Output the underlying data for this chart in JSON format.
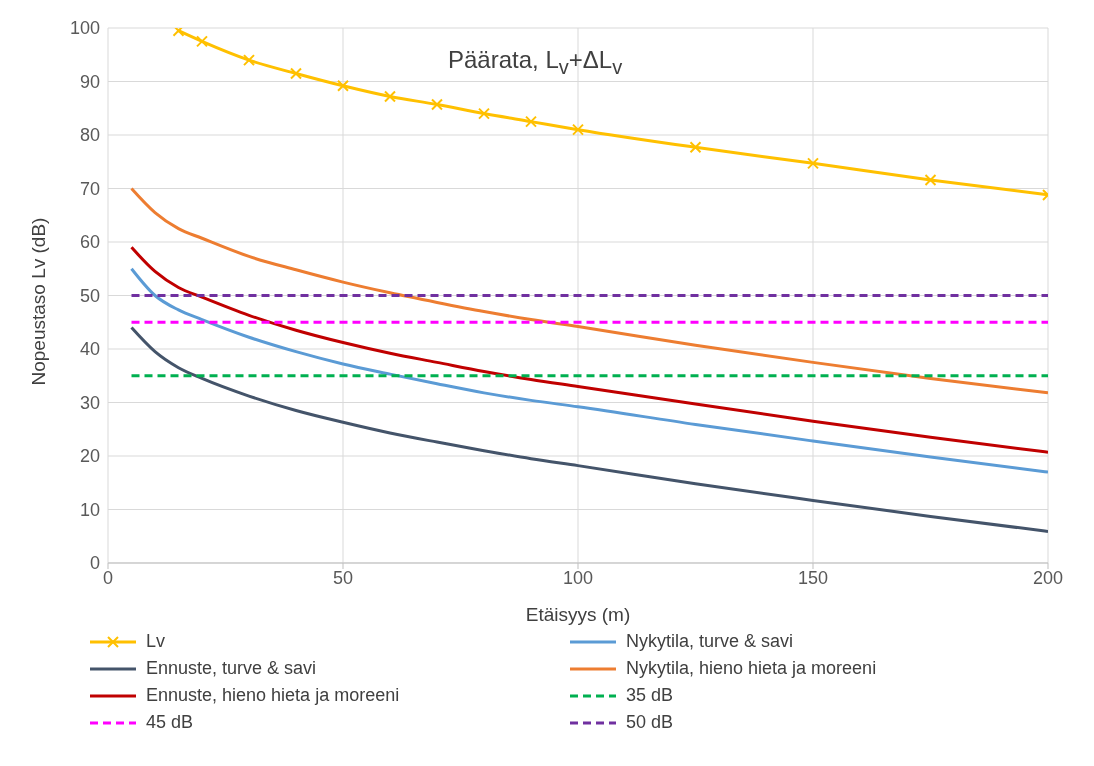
{
  "chart_data": {
    "type": "line",
    "title": "Päärata, L$_{v}$+ΔL$_{v}$",
    "xlabel": "Etäisyys (m)",
    "ylabel": "Nopeustaso Lv (dB)",
    "xlim": [
      0,
      200
    ],
    "xticks": [
      0,
      50,
      100,
      150,
      200
    ],
    "ylim": [
      0,
      100
    ],
    "yticks": [
      0,
      10,
      20,
      30,
      40,
      50,
      60,
      70,
      80,
      90,
      100
    ],
    "grid": true,
    "legend": "bottom",
    "line_style": "solid",
    "marker": "none",
    "series": [
      {
        "name": "Lv",
        "color": "#ffc000",
        "marker": "cross",
        "x": [
          15,
          20,
          30,
          40,
          50,
          60,
          70,
          80,
          90,
          100,
          125,
          150,
          175,
          200
        ],
        "values": [
          99.5,
          97.5,
          94,
          91.5,
          89.2,
          87.2,
          85.7,
          84,
          82.5,
          81,
          77.7,
          74.7,
          71.6,
          68.8
        ]
      },
      {
        "name": "Nykytila, turve & savi",
        "color": "#5b9bd5",
        "x": [
          5,
          10,
          15,
          20,
          30,
          40,
          50,
          60,
          70,
          80,
          90,
          100,
          125,
          150,
          175,
          200
        ],
        "values": [
          55,
          50,
          47.3,
          45.5,
          42.2,
          39.5,
          37.2,
          35.3,
          33.5,
          31.8,
          30.4,
          29.2,
          25.9,
          22.8,
          19.8,
          17
        ]
      },
      {
        "name": "Ennuste, turve & savi",
        "color": "#44546a",
        "x": [
          5,
          10,
          15,
          20,
          30,
          40,
          50,
          60,
          70,
          80,
          90,
          100,
          125,
          150,
          175,
          200
        ],
        "values": [
          44,
          39.5,
          36.5,
          34.5,
          31.2,
          28.5,
          26.3,
          24.3,
          22.6,
          21,
          19.5,
          18.2,
          14.8,
          11.7,
          8.7,
          5.9
        ]
      },
      {
        "name": "Nykytila, hieno hieta ja moreeni",
        "color": "#ed7d31",
        "x": [
          5,
          10,
          15,
          20,
          30,
          40,
          50,
          60,
          70,
          80,
          90,
          100,
          125,
          150,
          175,
          200
        ],
        "values": [
          70,
          65.5,
          62.5,
          60.7,
          57.3,
          54.8,
          52.5,
          50.5,
          48.7,
          47,
          45.5,
          44.2,
          40.7,
          37.5,
          34.5,
          31.8
        ]
      },
      {
        "name": "Ennuste, hieno hieta ja moreeni",
        "color": "#c00000",
        "x": [
          5,
          10,
          15,
          20,
          30,
          40,
          50,
          60,
          70,
          80,
          90,
          100,
          125,
          150,
          175,
          200
        ],
        "values": [
          59,
          54.5,
          51.5,
          49.7,
          46.3,
          43.5,
          41.2,
          39.2,
          37.5,
          35.8,
          34.3,
          33,
          29.7,
          26.5,
          23.5,
          20.7
        ]
      },
      {
        "name": "35 dB",
        "color": "#00b050",
        "line_style": "dashed",
        "x": [
          5,
          200
        ],
        "values": [
          35,
          35
        ]
      },
      {
        "name": "45 dB",
        "color": "#ff00ff",
        "line_style": "dashed",
        "x": [
          5,
          200
        ],
        "values": [
          45,
          45
        ]
      },
      {
        "name": "50 dB",
        "color": "#7030a0",
        "line_style": "dashed",
        "x": [
          5,
          200
        ],
        "values": [
          50,
          50
        ]
      }
    ]
  }
}
